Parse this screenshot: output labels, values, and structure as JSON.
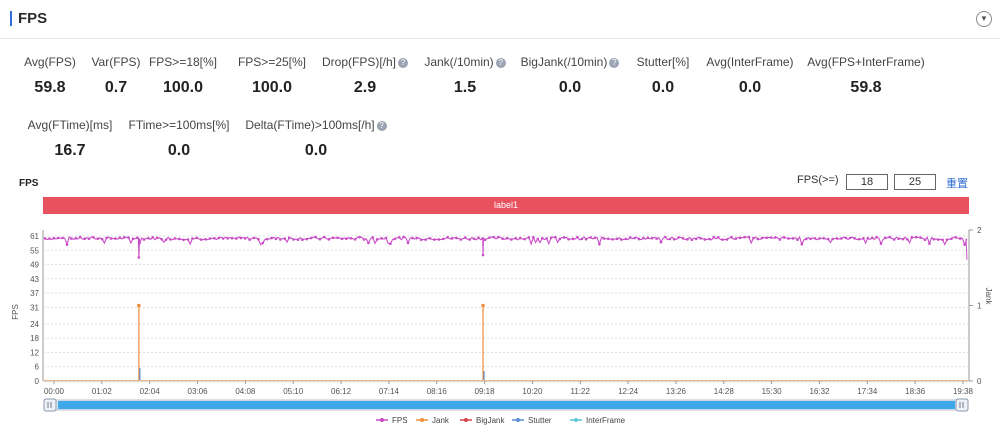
{
  "header": {
    "title": "FPS",
    "collapse_icon": "chevron-down-icon"
  },
  "metrics_row1": [
    {
      "label": "Avg(FPS)",
      "value": "59.8",
      "help": false
    },
    {
      "label": "Var(FPS)",
      "value": "0.7",
      "help": false
    },
    {
      "label": "FPS>=18[%]",
      "value": "100.0",
      "help": false
    },
    {
      "label": "FPS>=25[%]",
      "value": "100.0",
      "help": false
    },
    {
      "label": "Drop(FPS)[/h]",
      "value": "2.9",
      "help": true
    },
    {
      "label": "Jank(/10min)",
      "value": "1.5",
      "help": true
    },
    {
      "label": "BigJank(/10min)",
      "value": "0.0",
      "help": true
    },
    {
      "label": "Stutter[%]",
      "value": "0.0",
      "help": false
    },
    {
      "label": "Avg(InterFrame)",
      "value": "0.0",
      "help": false
    },
    {
      "label": "Avg(FPS+InterFrame)",
      "value": "59.8",
      "help": false
    }
  ],
  "metrics_row2": [
    {
      "label": "Avg(FTime)[ms]",
      "value": "16.7",
      "help": false
    },
    {
      "label": "FTime>=100ms[%]",
      "value": "0.0",
      "help": false
    },
    {
      "label": "Delta(FTime)>100ms[/h]",
      "value": "0.0",
      "help": true
    }
  ],
  "chart_panel": {
    "title": "FPS",
    "fps_threshold_label": "FPS(>=)",
    "threshold_low": "18",
    "threshold_high": "25",
    "reset_label": "重置",
    "label_bar": "label1"
  },
  "chart_data": {
    "type": "line",
    "x_ticks": [
      "00:00",
      "01:02",
      "02:04",
      "03:06",
      "04:08",
      "05:10",
      "06:12",
      "07:14",
      "08:16",
      "09:18",
      "10:20",
      "11:22",
      "12:24",
      "13:26",
      "14:28",
      "15:30",
      "16:32",
      "17:34",
      "18:36",
      "19:38"
    ],
    "y_left_label": "FPS",
    "y_left_ticks": [
      0,
      6,
      12,
      18,
      24,
      31,
      37,
      43,
      49,
      55,
      61
    ],
    "y_right_label": "Jank",
    "y_right_ticks": [
      0,
      1,
      2
    ],
    "ylim_left": [
      0,
      61
    ],
    "ylim_right": [
      0,
      2
    ],
    "series": [
      {
        "name": "FPS",
        "color": "#c94cc7",
        "baseline": 60,
        "dips": [
          {
            "x": "01:50",
            "y": 52
          },
          {
            "x": "09:16",
            "y": 53
          }
        ]
      },
      {
        "name": "Jank",
        "color": "#f08c3c",
        "spikes": [
          {
            "x": "01:50",
            "y": 1
          },
          {
            "x": "09:16",
            "y": 1
          }
        ]
      },
      {
        "name": "BigJank",
        "color": "#d9434a",
        "spikes": []
      },
      {
        "name": "Stutter",
        "color": "#5b8fd6",
        "spikes": [
          {
            "x": "01:50",
            "y": 0.17
          },
          {
            "x": "09:16",
            "y": 0.13
          }
        ]
      },
      {
        "name": "InterFrame",
        "color": "#5cc9d9",
        "spikes": []
      }
    ],
    "legend_position": "bottom"
  }
}
